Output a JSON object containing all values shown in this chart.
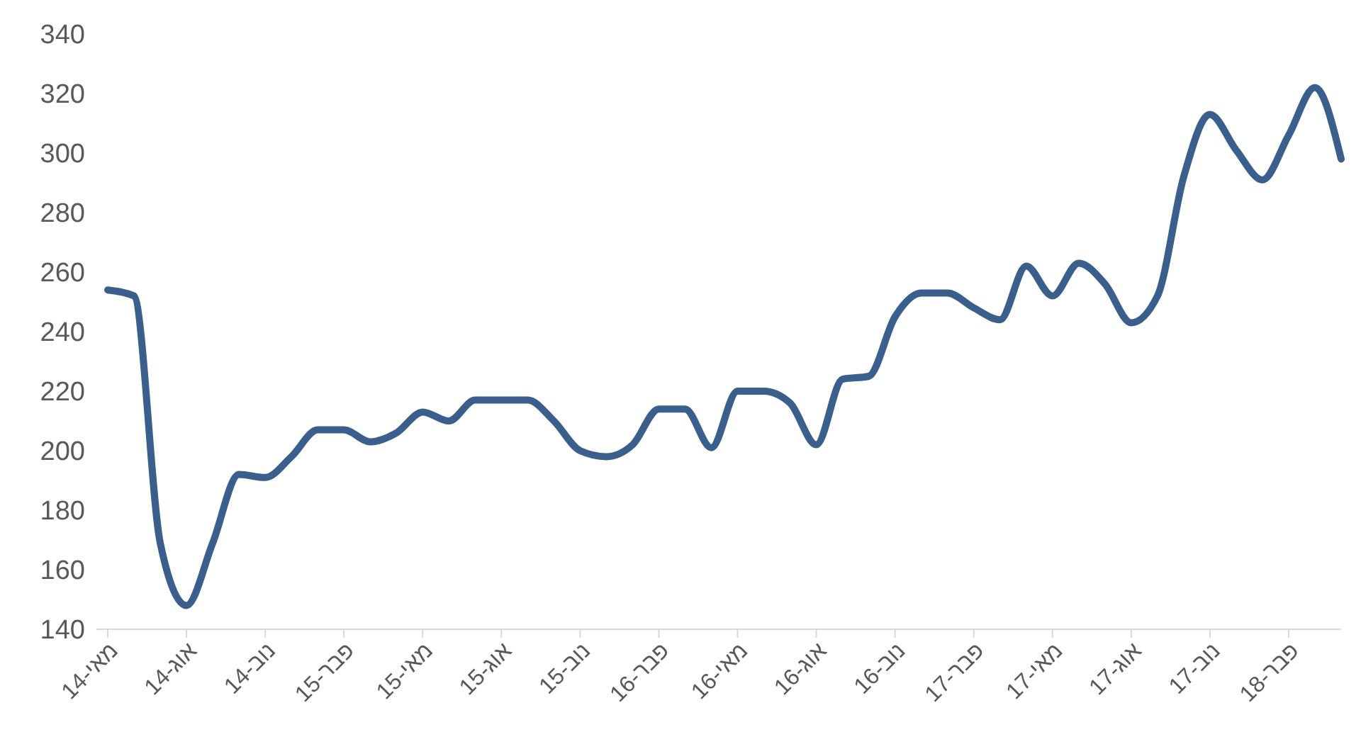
{
  "chart_data": {
    "type": "line",
    "categories": [
      "מאי-14",
      null,
      null,
      "אוג-14",
      null,
      null,
      "נוב-14",
      null,
      null,
      "פבר-15",
      null,
      null,
      "מאי-15",
      null,
      null,
      "אוג-15",
      null,
      null,
      "נוב-15",
      null,
      null,
      "פבר-16",
      null,
      null,
      "מאי-16",
      null,
      null,
      "אוג-16",
      null,
      null,
      "נוב-16",
      null,
      null,
      "פבר-17",
      null,
      null,
      "מאי-17",
      null,
      null,
      "אוג-17",
      null,
      null,
      "נוב-17",
      null,
      null,
      "פבר-18",
      null,
      null
    ],
    "series": [
      {
        "color": "#3b5f8d",
        "values": [
          254,
          252,
          169,
          148,
          169,
          192,
          191,
          198,
          207,
          207,
          203,
          206,
          213,
          210,
          217,
          217,
          217,
          210,
          200,
          198,
          202,
          214,
          214,
          201,
          220,
          220,
          216,
          202,
          224,
          225,
          245,
          253,
          253,
          248,
          244,
          262,
          252,
          263,
          256,
          243,
          252,
          292,
          313,
          301,
          291,
          306,
          322,
          298
        ]
      }
    ],
    "ylim": [
      140,
      340
    ],
    "yticks": [
      140,
      160,
      180,
      200,
      220,
      240,
      260,
      280,
      300,
      320,
      340
    ],
    "grid": false,
    "legend": false,
    "marker": "none",
    "line_style": "solid"
  }
}
